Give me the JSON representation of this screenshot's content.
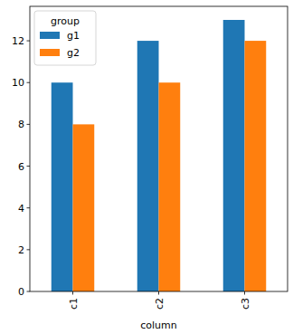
{
  "chart_data": {
    "type": "bar",
    "x_label": "column",
    "legend_title": "group",
    "categories": [
      "c1",
      "c2",
      "c3"
    ],
    "series": [
      {
        "name": "g1",
        "color": "#1f77b4",
        "values": [
          10,
          12,
          13
        ]
      },
      {
        "name": "g2",
        "color": "#ff7f0e",
        "values": [
          8,
          10,
          12
        ]
      }
    ],
    "ylim": [
      0,
      13.65
    ],
    "yticks": [
      0,
      2,
      4,
      6,
      8,
      10,
      12
    ],
    "legend": "upper left",
    "grid": false
  }
}
